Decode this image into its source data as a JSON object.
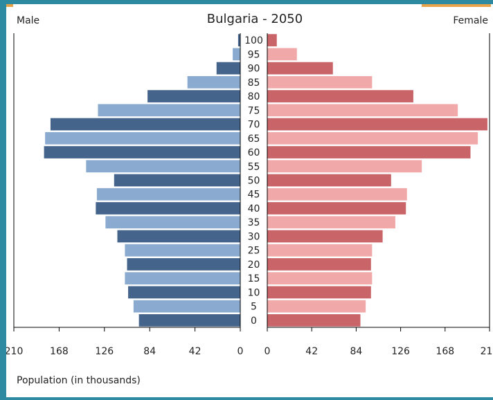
{
  "colors": {
    "frame": "#2e8aa0",
    "male_dark": "#44648c",
    "male_light": "#8aaacf",
    "female_dark": "#c96468",
    "female_light": "#f1a8a8"
  },
  "chart_data": {
    "type": "bar",
    "title": "Bulgaria - 2050",
    "left_label": "Male",
    "right_label": "Female",
    "xlabel": "Population (in thousands)",
    "age_groups": [
      "0",
      "5",
      "10",
      "15",
      "20",
      "25",
      "30",
      "35",
      "40",
      "45",
      "50",
      "55",
      "60",
      "65",
      "70",
      "75",
      "80",
      "85",
      "90",
      "95",
      "100"
    ],
    "xlim": [
      0,
      210
    ],
    "xticks": [
      210,
      168,
      126,
      84,
      42,
      0
    ],
    "series": [
      {
        "name": "Male",
        "values": [
          94,
          99,
          104,
          107,
          105,
          107,
          114,
          125,
          134,
          133,
          117,
          143,
          182,
          181,
          176,
          132,
          86,
          49,
          22,
          7,
          2
        ]
      },
      {
        "name": "Female",
        "values": [
          88,
          93,
          98,
          99,
          98,
          99,
          109,
          121,
          131,
          132,
          117,
          146,
          192,
          199,
          208,
          180,
          138,
          99,
          62,
          28,
          9
        ]
      }
    ]
  }
}
